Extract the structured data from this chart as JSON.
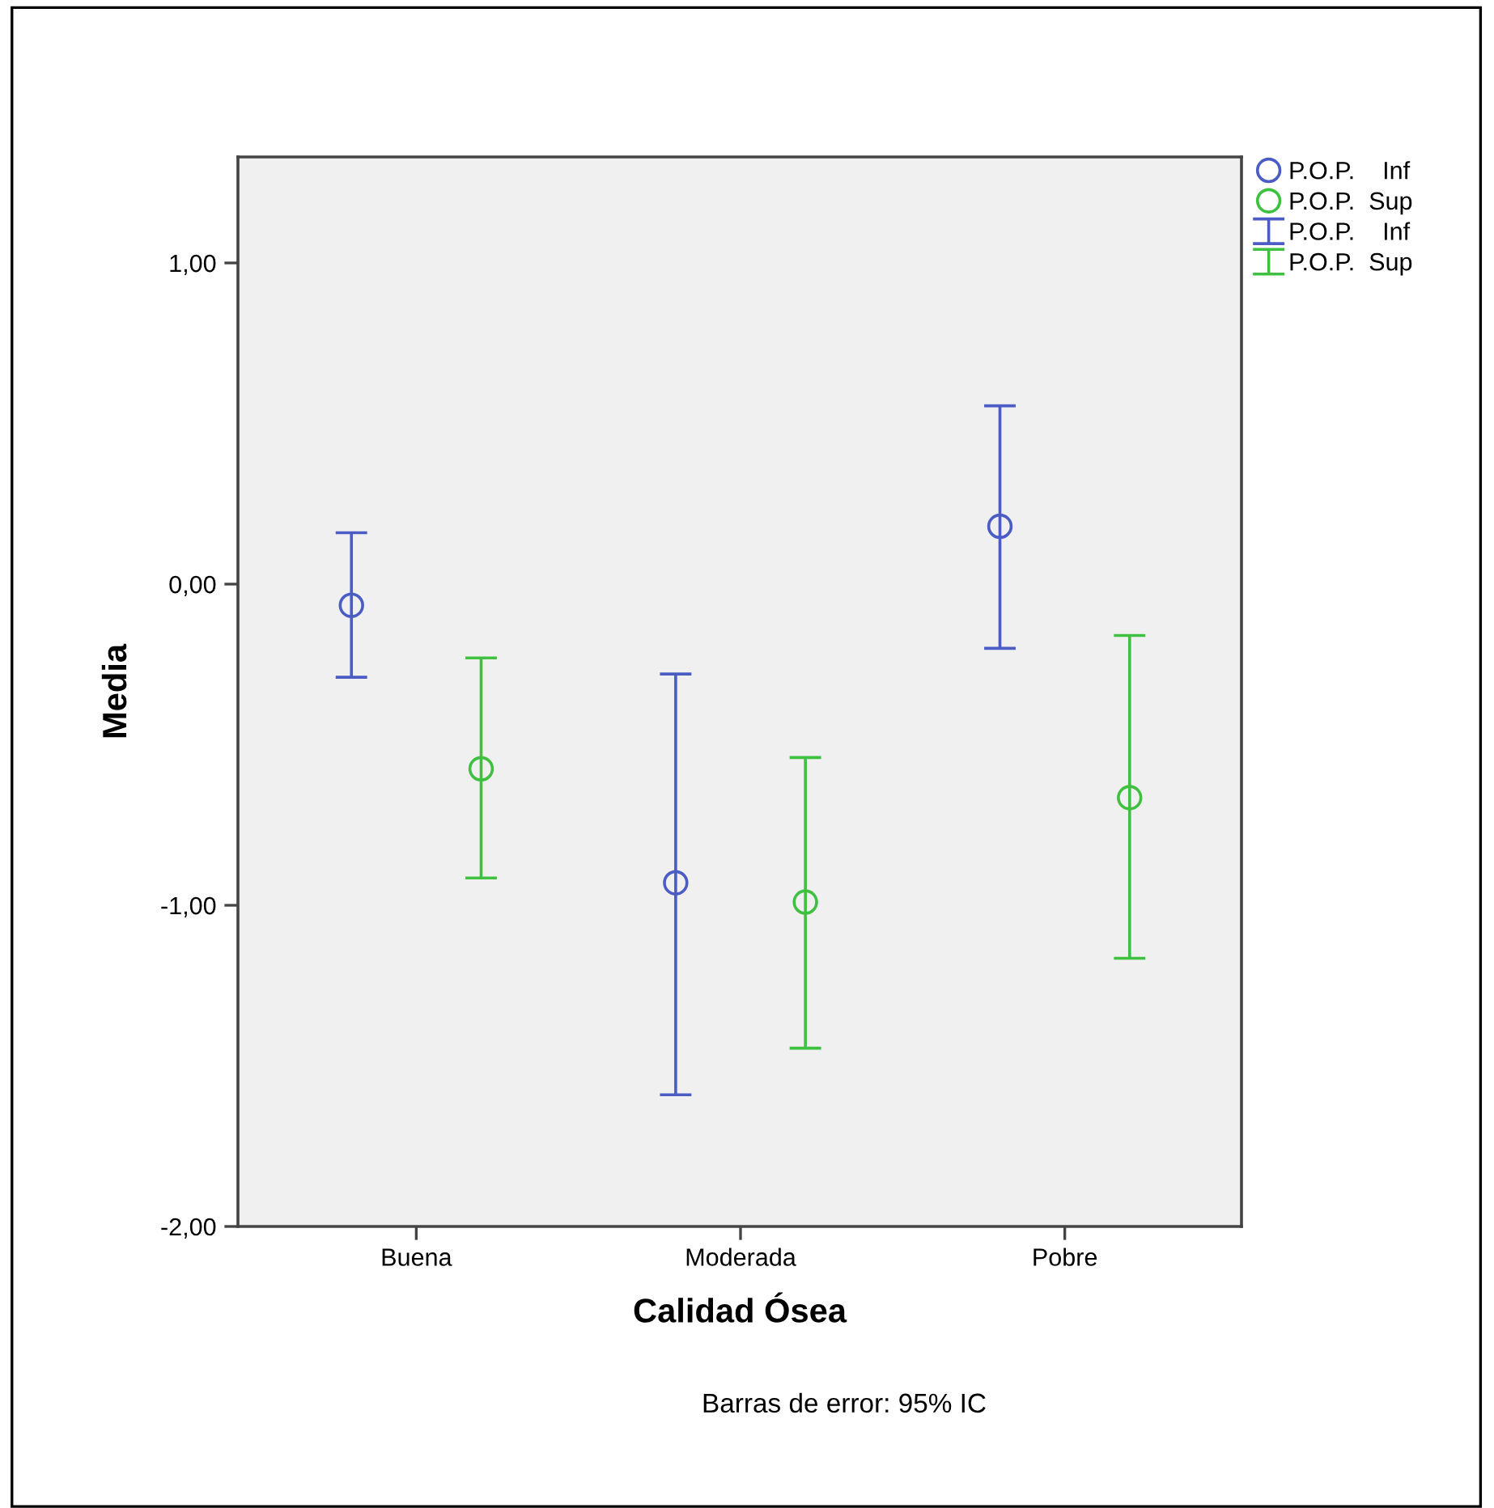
{
  "chart_data": {
    "type": "scatter",
    "xlabel": "Calidad Ósea",
    "ylabel": "Media",
    "categories": [
      "Buena",
      "Moderada",
      "Pobre"
    ],
    "series": [
      {
        "name": "P.O.P.    Inf",
        "color": "#4b5cc4",
        "values": [
          -0.066,
          -0.93,
          0.18
        ],
        "errors": [
          [
            -0.29,
            0.16
          ],
          [
            -1.59,
            -0.28
          ],
          [
            -0.2,
            0.555
          ]
        ]
      },
      {
        "name": "P.O.P.  Sup",
        "color": "#40c040",
        "values": [
          -0.575,
          -0.99,
          -0.665
        ],
        "errors": [
          [
            -0.915,
            -0.23
          ],
          [
            -1.445,
            -0.54
          ],
          [
            -1.165,
            -0.16
          ]
        ]
      }
    ],
    "ylim": [
      -2.0,
      1.33
    ],
    "yticks": [
      {
        "value": -2,
        "label": "-2,00"
      },
      {
        "value": -1,
        "label": "-1,00"
      },
      {
        "value": 0,
        "label": "0,00"
      },
      {
        "value": 1,
        "label": "1,00"
      }
    ],
    "marker": "circle",
    "grid": false,
    "legend": "top right",
    "annotations": [
      "Barras de error: 95% IC"
    ]
  }
}
